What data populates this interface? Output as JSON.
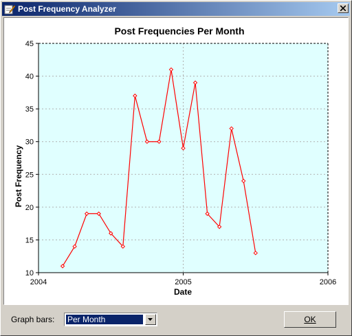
{
  "window": {
    "title": "Post Frequency Analyzer",
    "close_icon": "close-icon",
    "app_icon": "pencil-icon"
  },
  "chart_data": {
    "type": "line",
    "title": "Post Frequencies Per Month",
    "xlabel": "Date",
    "ylabel": "Post Frequency",
    "xlim": [
      2004,
      2006
    ],
    "ylim": [
      10,
      45
    ],
    "x_ticks": [
      "2004",
      "2005",
      "2006"
    ],
    "y_ticks": [
      10,
      15,
      20,
      25,
      30,
      35,
      40,
      45
    ],
    "grid": true,
    "plot_background": "#e0ffff",
    "series": [
      {
        "color": "#ff0000",
        "x": [
          "2004-03",
          "2004-04",
          "2004-05",
          "2004-06",
          "2004-07",
          "2004-08",
          "2004-09",
          "2004-10",
          "2004-11",
          "2004-12",
          "2005-01",
          "2005-02",
          "2005-03",
          "2005-04",
          "2005-05",
          "2005-06",
          "2005-07"
        ],
        "values": [
          11,
          14,
          19,
          19,
          16,
          14,
          37,
          30,
          30,
          41,
          29,
          39,
          19,
          17,
          32,
          24,
          13
        ]
      }
    ]
  },
  "controls": {
    "graph_bars_label": "Graph bars:",
    "graph_bars_value": "Per Month",
    "ok_label": "OK",
    "dropdown_icon": "chevron-down-icon"
  }
}
